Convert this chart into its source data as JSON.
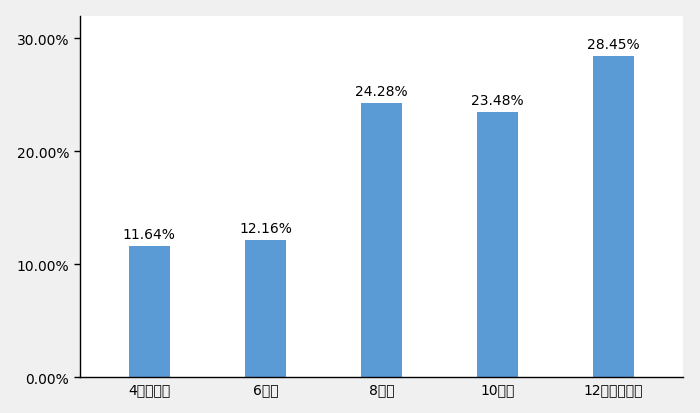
{
  "categories": [
    "4小时以内",
    "6小时",
    "8小时",
    "10小时",
    "12小时及以上"
  ],
  "values": [
    0.1164,
    0.1216,
    0.2428,
    0.2348,
    0.2845
  ],
  "labels": [
    "11.64%",
    "12.16%",
    "24.28%",
    "23.48%",
    "28.45%"
  ],
  "bar_color": "#5B9BD5",
  "background_color": "#f0f0f0",
  "plot_background": "#ffffff",
  "ylim": [
    0,
    0.32
  ],
  "yticks": [
    0.0,
    0.1,
    0.2,
    0.3
  ],
  "ytick_labels": [
    "0.00%",
    "10.00%",
    "20.00%",
    "30.00%"
  ],
  "label_fontsize": 10,
  "tick_fontsize": 10,
  "bar_width": 0.35
}
